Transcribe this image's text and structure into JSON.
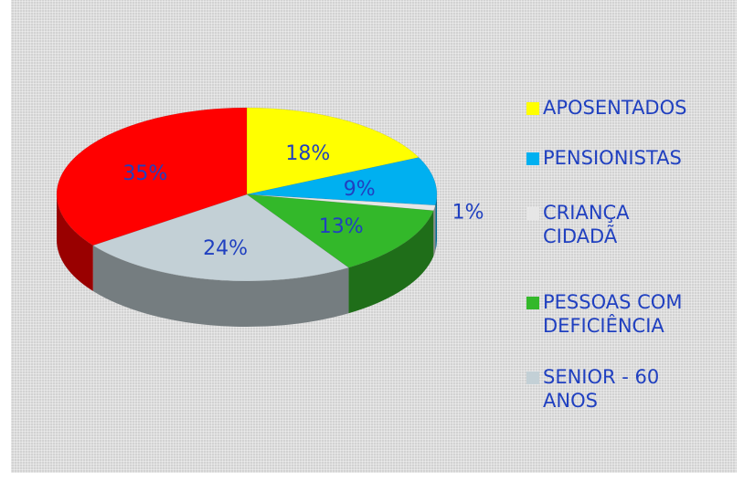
{
  "chart_data": {
    "type": "pie",
    "categories": [
      "APOSENTADOS",
      "PENSIONISTAS",
      "CRIANÇA CIDADÃ",
      "PESSOAS COM DEFICIÊNCIA",
      "SENIOR - 60 ANOS",
      null
    ],
    "values": [
      18,
      9,
      1,
      13,
      24,
      35
    ],
    "value_labels": [
      "18%",
      "9%",
      "1%",
      "13%",
      "24%",
      "35%"
    ],
    "colors": [
      "#ffff00",
      "#00b0f0",
      "#e6e6e6",
      "#33b82a",
      "#c3d0d6",
      "#ff0000"
    ],
    "legend": "right"
  }
}
